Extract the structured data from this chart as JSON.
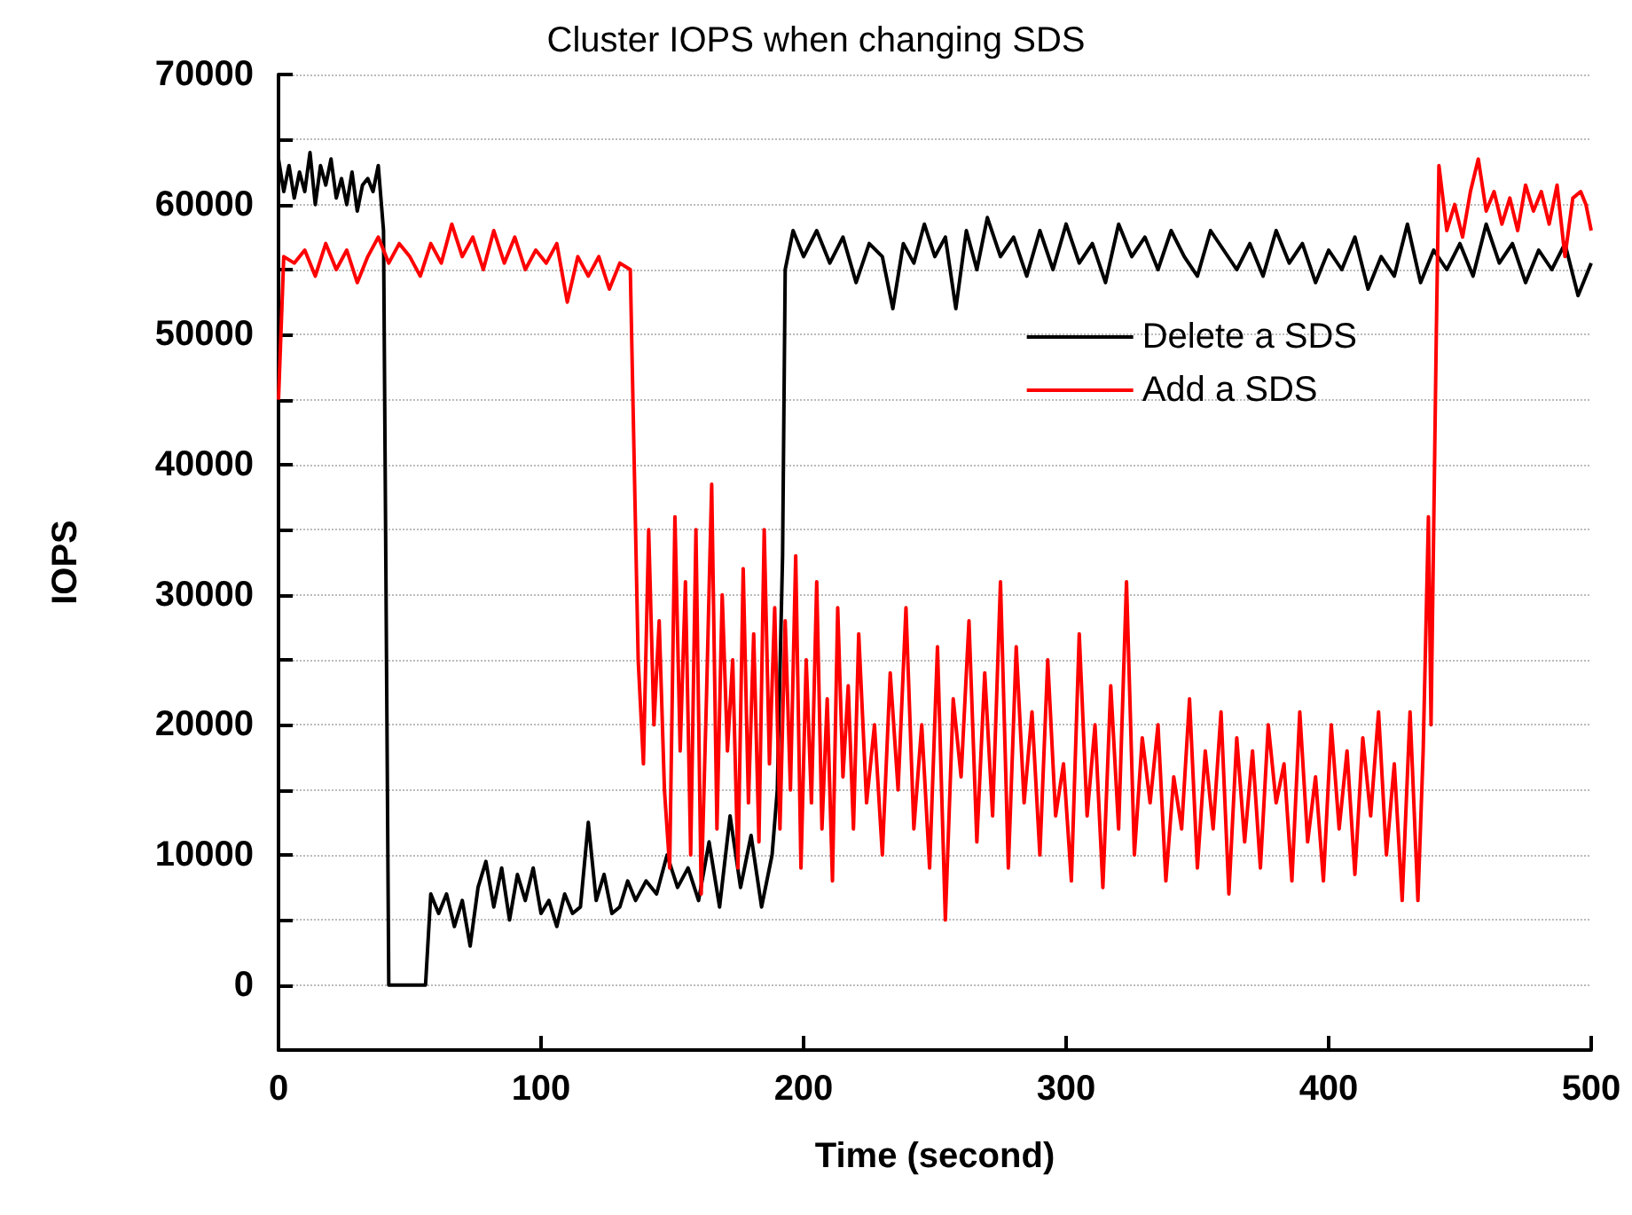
{
  "chart_data": {
    "type": "line",
    "title": "Cluster IOPS when changing SDS",
    "xlabel": "Time (second)",
    "ylabel": "IOPS",
    "xlim": [
      0,
      500
    ],
    "xticks": [
      0,
      100,
      200,
      300,
      400,
      500
    ],
    "ylim": [
      -5000,
      70000
    ],
    "yticks": [
      {
        "value": -5000,
        "label": null
      },
      0,
      {
        "value": 5000,
        "label": null
      },
      10000,
      {
        "value": 15000,
        "label": null
      },
      20000,
      {
        "value": 25000,
        "label": null
      },
      30000,
      {
        "value": 35000,
        "label": null
      },
      40000,
      {
        "value": 45000,
        "label": null
      },
      50000,
      {
        "value": 55000,
        "label": null
      },
      60000,
      {
        "value": 65000,
        "label": null
      },
      70000
    ],
    "grid": "y",
    "legend": "top right",
    "marker": "none",
    "line_style": "solid",
    "series": [
      {
        "name": "Delete a SDS",
        "color": "#000000",
        "x": [
          0,
          2,
          4,
          6,
          8,
          10,
          12,
          14,
          16,
          18,
          20,
          22,
          24,
          26,
          28,
          30,
          32,
          34,
          36,
          38,
          40,
          42,
          56,
          58,
          61,
          64,
          67,
          70,
          73,
          76,
          79,
          82,
          85,
          88,
          91,
          94,
          97,
          100,
          103,
          106,
          109,
          112,
          115,
          118,
          121,
          124,
          127,
          130,
          133,
          136,
          140,
          144,
          148,
          152,
          156,
          160,
          164,
          168,
          172,
          176,
          180,
          184,
          188,
          190,
          192,
          193,
          196,
          200,
          205,
          210,
          215,
          220,
          225,
          230,
          234,
          238,
          242,
          246,
          250,
          254,
          258,
          262,
          266,
          270,
          275,
          280,
          285,
          290,
          295,
          300,
          305,
          310,
          315,
          320,
          325,
          330,
          335,
          340,
          345,
          350,
          355,
          360,
          365,
          370,
          375,
          380,
          385,
          390,
          395,
          400,
          405,
          410,
          415,
          420,
          425,
          430,
          435,
          440,
          445,
          450,
          455,
          460,
          465,
          470,
          475,
          480,
          485,
          490,
          495,
          500
        ],
        "values": [
          63500,
          61000,
          63000,
          60500,
          62500,
          61000,
          64000,
          60000,
          63000,
          61500,
          63500,
          60500,
          62000,
          60000,
          62500,
          59500,
          61500,
          62000,
          61000,
          63000,
          58000,
          0,
          0,
          7000,
          5500,
          7000,
          4500,
          6500,
          3000,
          7500,
          9500,
          6000,
          9000,
          5000,
          8500,
          6500,
          9000,
          5500,
          6500,
          4500,
          7000,
          5500,
          6000,
          12500,
          6500,
          8500,
          5500,
          6000,
          8000,
          6500,
          8000,
          7000,
          10000,
          7500,
          9000,
          6500,
          11000,
          6000,
          13000,
          7500,
          11500,
          6000,
          10000,
          15000,
          33000,
          55000,
          58000,
          56000,
          58000,
          55500,
          57500,
          54000,
          57000,
          56000,
          52000,
          57000,
          55500,
          58500,
          56000,
          57500,
          52000,
          58000,
          55000,
          59000,
          56000,
          57500,
          54500,
          58000,
          55000,
          58500,
          55500,
          57000,
          54000,
          58500,
          56000,
          57500,
          55000,
          58000,
          56000,
          54500,
          58000,
          56500,
          55000,
          57000,
          54500,
          58000,
          55500,
          57000,
          54000,
          56500,
          55000,
          57500,
          53500,
          56000,
          54500,
          58500,
          54000,
          56500,
          55000,
          57000,
          54500,
          58500,
          55500,
          57000,
          54000,
          56500,
          55000,
          57000,
          53000,
          55500
        ]
      },
      {
        "name": "Add a SDS",
        "color": "#ff0000",
        "x": [
          0,
          2,
          6,
          10,
          14,
          18,
          22,
          26,
          30,
          34,
          38,
          42,
          46,
          50,
          54,
          58,
          62,
          66,
          70,
          74,
          78,
          82,
          86,
          90,
          94,
          98,
          102,
          106,
          110,
          114,
          118,
          122,
          126,
          130,
          134,
          137,
          139,
          141,
          143,
          145,
          147,
          149,
          151,
          153,
          155,
          157,
          159,
          161,
          163,
          165,
          167,
          169,
          171,
          173,
          175,
          177,
          179,
          181,
          183,
          185,
          187,
          189,
          191,
          193,
          195,
          197,
          199,
          201,
          203,
          205,
          207,
          209,
          211,
          213,
          215,
          217,
          219,
          221,
          224,
          227,
          230,
          233,
          236,
          239,
          242,
          245,
          248,
          251,
          254,
          257,
          260,
          263,
          266,
          269,
          272,
          275,
          278,
          281,
          284,
          287,
          290,
          293,
          296,
          299,
          302,
          305,
          308,
          311,
          314,
          317,
          320,
          323,
          326,
          329,
          332,
          335,
          338,
          341,
          344,
          347,
          350,
          353,
          356,
          359,
          362,
          365,
          368,
          371,
          374,
          377,
          380,
          383,
          386,
          389,
          392,
          395,
          398,
          401,
          404,
          407,
          410,
          413,
          416,
          419,
          422,
          425,
          428,
          431,
          434,
          436,
          438,
          439,
          441,
          442,
          445,
          448,
          451,
          454,
          457,
          460,
          463,
          466,
          469,
          472,
          475,
          478,
          481,
          484,
          487,
          490,
          493,
          496,
          498,
          500
        ],
        "values": [
          45000,
          56000,
          55500,
          56500,
          54500,
          57000,
          55000,
          56500,
          54000,
          56000,
          57500,
          55500,
          57000,
          56000,
          54500,
          57000,
          55500,
          58500,
          56000,
          57500,
          55000,
          58000,
          55500,
          57500,
          55000,
          56500,
          55500,
          57000,
          52500,
          56000,
          54500,
          56000,
          53500,
          55500,
          55000,
          25000,
          17000,
          35000,
          20000,
          28000,
          15000,
          9000,
          36000,
          18000,
          31000,
          10000,
          35000,
          7000,
          22000,
          38500,
          12000,
          30000,
          18000,
          25000,
          9000,
          32000,
          14000,
          27000,
          11000,
          35000,
          17000,
          29000,
          12000,
          28000,
          15000,
          33000,
          9000,
          25000,
          14000,
          31000,
          12000,
          22000,
          8000,
          29000,
          16000,
          23000,
          12000,
          27000,
          14000,
          20000,
          10000,
          24000,
          15000,
          29000,
          12000,
          20000,
          9000,
          26000,
          5000,
          22000,
          16000,
          28000,
          11000,
          24000,
          13000,
          31000,
          9000,
          26000,
          14000,
          21000,
          10000,
          25000,
          13000,
          17000,
          8000,
          27000,
          13000,
          20000,
          7500,
          23000,
          12000,
          31000,
          10000,
          19000,
          14000,
          20000,
          8000,
          16000,
          12000,
          22000,
          9000,
          18000,
          12000,
          21000,
          7000,
          19000,
          11000,
          18000,
          9000,
          20000,
          14000,
          17000,
          8000,
          21000,
          11000,
          16000,
          8000,
          20000,
          12000,
          18000,
          8500,
          19000,
          13000,
          21000,
          10000,
          17000,
          6500,
          21000,
          6500,
          18000,
          36000,
          20000,
          50000,
          63000,
          58000,
          60000,
          57500,
          61000,
          63500,
          59500,
          61000,
          58500,
          60500,
          58000,
          61500,
          59500,
          61000,
          58500,
          61500,
          56000,
          60500,
          61000,
          60000,
          58000
        ]
      }
    ]
  }
}
